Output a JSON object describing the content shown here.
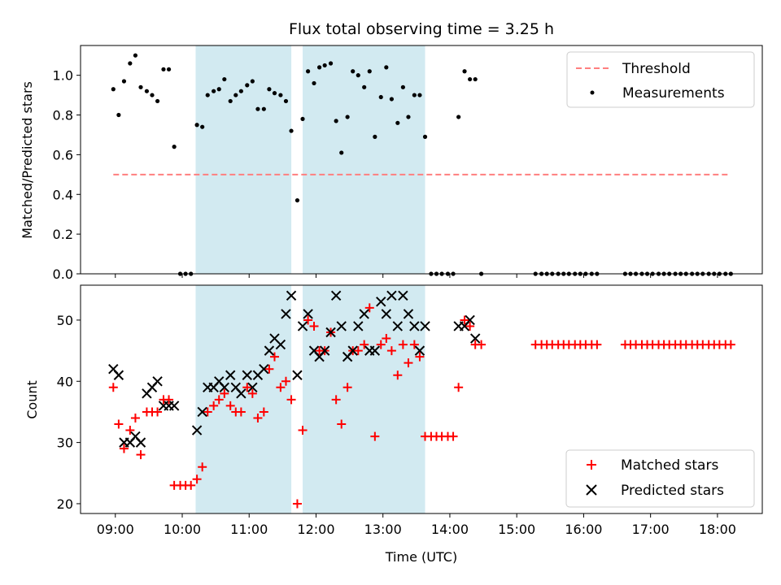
{
  "title": "Flux total observing time = 3.25 h",
  "colors": {
    "threshold": "#ff7f7f",
    "measurement": "#000000",
    "matched": "#ff0000",
    "predicted": "#000000",
    "shade": "#add8e6"
  },
  "chart_data": [
    {
      "type": "scatter",
      "panel": "top",
      "ylabel": "Matched/Predicted stars",
      "xlabel": "",
      "xlim": [
        8.48,
        18.67
      ],
      "ylim": [
        0.0,
        1.15
      ],
      "yticks": [
        0.0,
        0.2,
        0.4,
        0.6,
        0.8,
        1.0
      ],
      "ytick_labels": [
        "0.0",
        "0.2",
        "0.4",
        "0.6",
        "0.8",
        "1.0"
      ],
      "grid": false,
      "legend_position": "top-right",
      "shaded_x_ranges": [
        [
          10.2,
          11.63
        ],
        [
          11.8,
          13.63
        ]
      ],
      "series": [
        {
          "name": "Threshold",
          "kind": "dashed-line",
          "x": [
            8.97,
            18.17
          ],
          "y": [
            0.5,
            0.5
          ]
        },
        {
          "name": "Measurements",
          "kind": "dots",
          "x": [
            8.97,
            9.05,
            9.13,
            9.22,
            9.3,
            9.38,
            9.47,
            9.55,
            9.63,
            9.72,
            9.8,
            9.88,
            9.97,
            10.05,
            10.13,
            10.22,
            10.3,
            10.38,
            10.47,
            10.55,
            10.63,
            10.72,
            10.8,
            10.88,
            10.97,
            11.05,
            11.13,
            11.22,
            11.3,
            11.38,
            11.47,
            11.55,
            11.63,
            11.72,
            11.8,
            11.88,
            11.97,
            12.05,
            12.13,
            12.22,
            12.3,
            12.38,
            12.47,
            12.55,
            12.63,
            12.72,
            12.8,
            12.88,
            12.97,
            13.05,
            13.13,
            13.22,
            13.3,
            13.38,
            13.47,
            13.55,
            13.63,
            13.72,
            13.8,
            13.88,
            13.97,
            14.05,
            14.13,
            14.22,
            14.3,
            14.38,
            14.47,
            15.28,
            15.37,
            15.45,
            15.53,
            15.62,
            15.7,
            15.78,
            15.87,
            15.95,
            16.03,
            16.12,
            16.2,
            16.62,
            16.7,
            16.78,
            16.87,
            16.95,
            17.03,
            17.12,
            17.2,
            17.28,
            17.37,
            17.45,
            17.53,
            17.62,
            17.7,
            17.78,
            17.87,
            17.95,
            18.03,
            18.12,
            18.2
          ],
          "y": [
            0.93,
            0.8,
            0.97,
            1.06,
            1.1,
            0.94,
            0.92,
            0.9,
            0.87,
            1.03,
            1.03,
            0.64,
            0.0,
            0.0,
            0.0,
            0.75,
            0.74,
            0.9,
            0.92,
            0.93,
            0.98,
            0.87,
            0.9,
            0.92,
            0.95,
            0.97,
            0.83,
            0.83,
            0.93,
            0.91,
            0.9,
            0.87,
            0.72,
            0.37,
            0.78,
            1.02,
            0.96,
            1.04,
            1.05,
            1.06,
            0.77,
            0.61,
            0.79,
            1.02,
            1.0,
            0.94,
            1.02,
            0.69,
            0.89,
            1.04,
            0.88,
            0.76,
            0.94,
            0.79,
            0.9,
            0.9,
            0.69,
            0.0,
            0.0,
            0.0,
            0.0,
            0.0,
            0.79,
            1.02,
            0.98,
            0.98,
            0.0,
            0.0,
            0.0,
            0.0,
            0.0,
            0.0,
            0.0,
            0.0,
            0.0,
            0.0,
            0.0,
            0.0,
            0.0,
            0.0,
            0.0,
            0.0,
            0.0,
            0.0,
            0.0,
            0.0,
            0.0,
            0.0,
            0.0,
            0.0,
            0.0,
            0.0,
            0.0,
            0.0,
            0.0,
            0.0,
            0.0,
            0.0,
            0.0
          ]
        }
      ]
    },
    {
      "type": "scatter",
      "panel": "bottom",
      "ylabel": "Count",
      "xlabel": "Time (UTC)",
      "xlim": [
        8.48,
        18.67
      ],
      "ylim": [
        18.4,
        55.7
      ],
      "yticks": [
        20,
        30,
        40,
        50
      ],
      "ytick_labels": [
        "20",
        "30",
        "40",
        "50"
      ],
      "xticks": [
        9,
        10,
        11,
        12,
        13,
        14,
        15,
        16,
        17,
        18
      ],
      "xtick_labels": [
        "09:00",
        "10:00",
        "11:00",
        "12:00",
        "13:00",
        "14:00",
        "15:00",
        "16:00",
        "17:00",
        "18:00"
      ],
      "grid": false,
      "legend_position": "bottom-right",
      "shaded_x_ranges": [
        [
          10.2,
          11.63
        ],
        [
          11.8,
          13.63
        ]
      ],
      "series": [
        {
          "name": "Matched stars",
          "kind": "plus",
          "x": [
            8.97,
            9.05,
            9.13,
            9.22,
            9.3,
            9.38,
            9.47,
            9.55,
            9.63,
            9.72,
            9.8,
            9.88,
            9.97,
            10.05,
            10.13,
            10.22,
            10.3,
            10.38,
            10.47,
            10.55,
            10.63,
            10.72,
            10.8,
            10.88,
            10.97,
            11.05,
            11.13,
            11.22,
            11.3,
            11.38,
            11.47,
            11.55,
            11.63,
            11.72,
            11.8,
            11.88,
            11.97,
            12.05,
            12.13,
            12.22,
            12.3,
            12.38,
            12.47,
            12.55,
            12.63,
            12.72,
            12.8,
            12.88,
            12.97,
            13.05,
            13.13,
            13.22,
            13.3,
            13.38,
            13.47,
            13.55,
            13.63,
            13.72,
            13.8,
            13.88,
            13.97,
            14.05,
            14.13,
            14.22,
            14.3,
            14.38,
            14.47,
            15.28,
            15.37,
            15.45,
            15.53,
            15.62,
            15.7,
            15.78,
            15.87,
            15.95,
            16.03,
            16.12,
            16.2,
            16.62,
            16.7,
            16.78,
            16.87,
            16.95,
            17.03,
            17.12,
            17.2,
            17.28,
            17.37,
            17.45,
            17.53,
            17.62,
            17.7,
            17.78,
            17.87,
            17.95,
            18.03,
            18.12,
            18.2
          ],
          "y": [
            39,
            33,
            29,
            32,
            34,
            28,
            35,
            35,
            35,
            37,
            37,
            23,
            23,
            23,
            23,
            24,
            26,
            35,
            36,
            37,
            38,
            36,
            35,
            35,
            39,
            38,
            34,
            35,
            42,
            44,
            39,
            40,
            37,
            20,
            32,
            50,
            49,
            45,
            45,
            48,
            37,
            33,
            39,
            45,
            45,
            46,
            52,
            31,
            46,
            47,
            45,
            41,
            46,
            43,
            46,
            44,
            31,
            31,
            31,
            31,
            31,
            31,
            39,
            50,
            49,
            46,
            46,
            46,
            46,
            46,
            46,
            46,
            46,
            46,
            46,
            46,
            46,
            46,
            46,
            46,
            46,
            46,
            46,
            46,
            46,
            46,
            46,
            46,
            46,
            46,
            46,
            46,
            46,
            46,
            46,
            46,
            46,
            46,
            46
          ]
        },
        {
          "name": "Predicted stars",
          "kind": "cross",
          "x": [
            8.97,
            9.05,
            9.13,
            9.22,
            9.3,
            9.38,
            9.47,
            9.55,
            9.63,
            9.72,
            9.8,
            9.88,
            10.22,
            10.3,
            10.38,
            10.47,
            10.55,
            10.63,
            10.72,
            10.8,
            10.88,
            10.97,
            11.05,
            11.13,
            11.22,
            11.3,
            11.38,
            11.47,
            11.55,
            11.63,
            11.72,
            11.8,
            11.88,
            11.97,
            12.05,
            12.13,
            12.22,
            12.3,
            12.38,
            12.47,
            12.55,
            12.63,
            12.72,
            12.8,
            12.88,
            12.97,
            13.05,
            13.13,
            13.22,
            13.3,
            13.38,
            13.47,
            13.55,
            13.63,
            14.13,
            14.22,
            14.3,
            14.38
          ],
          "y": [
            42,
            41,
            30,
            30,
            31,
            30,
            38,
            39,
            40,
            36,
            36,
            36,
            32,
            35,
            39,
            39,
            40,
            39,
            41,
            39,
            38,
            41,
            39,
            41,
            42,
            45,
            47,
            46,
            51,
            54,
            41,
            49,
            51,
            45,
            44,
            45,
            48,
            54,
            49,
            44,
            45,
            49,
            51,
            45,
            45,
            53,
            51,
            54,
            49,
            54,
            51,
            49,
            45,
            49,
            49,
            49,
            50,
            47
          ]
        }
      ]
    }
  ]
}
